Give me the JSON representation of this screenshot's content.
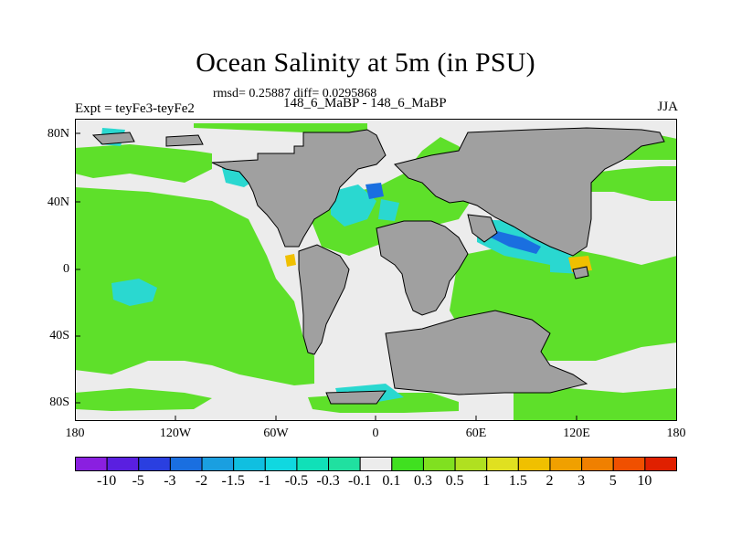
{
  "title": "Ocean Salinity at 5m (in PSU)",
  "stats": "rmsd= 0.25887 diff= 0.0295868",
  "experiment": "Expt = teyFe3-teyFe2",
  "case": "148_6_MaBP - 148_6_MaBP",
  "season": "JJA",
  "y_ticks": [
    "80N",
    "40N",
    "0",
    "40S",
    "80S"
  ],
  "x_ticks": [
    "180",
    "120W",
    "60W",
    "0",
    "60E",
    "120E",
    "180"
  ],
  "colorbar": {
    "labels": [
      "-10",
      "-5",
      "-3",
      "-2",
      "-1.5",
      "-1",
      "-0.5",
      "-0.3",
      "-0.1",
      "0.1",
      "0.3",
      "0.5",
      "1",
      "1.5",
      "2",
      "3",
      "5",
      "10"
    ],
    "colors": [
      "#8a1fe0",
      "#5a1fe0",
      "#2a3fe0",
      "#1a6fe0",
      "#1a9fe0",
      "#10bfe0",
      "#10d8e0",
      "#10e0b8",
      "#20e0a0",
      "#ececec",
      "#40e020",
      "#80e020",
      "#b0e020",
      "#e0e020",
      "#f0c000",
      "#f0a000",
      "#f08000",
      "#f05000",
      "#e02000"
    ]
  },
  "colors": {
    "land": "#a0a0a0",
    "neutral_ocean": "#ececec",
    "positive_anomaly": "#5ee02a",
    "negative_anomaly": "#2ad8d0"
  }
}
